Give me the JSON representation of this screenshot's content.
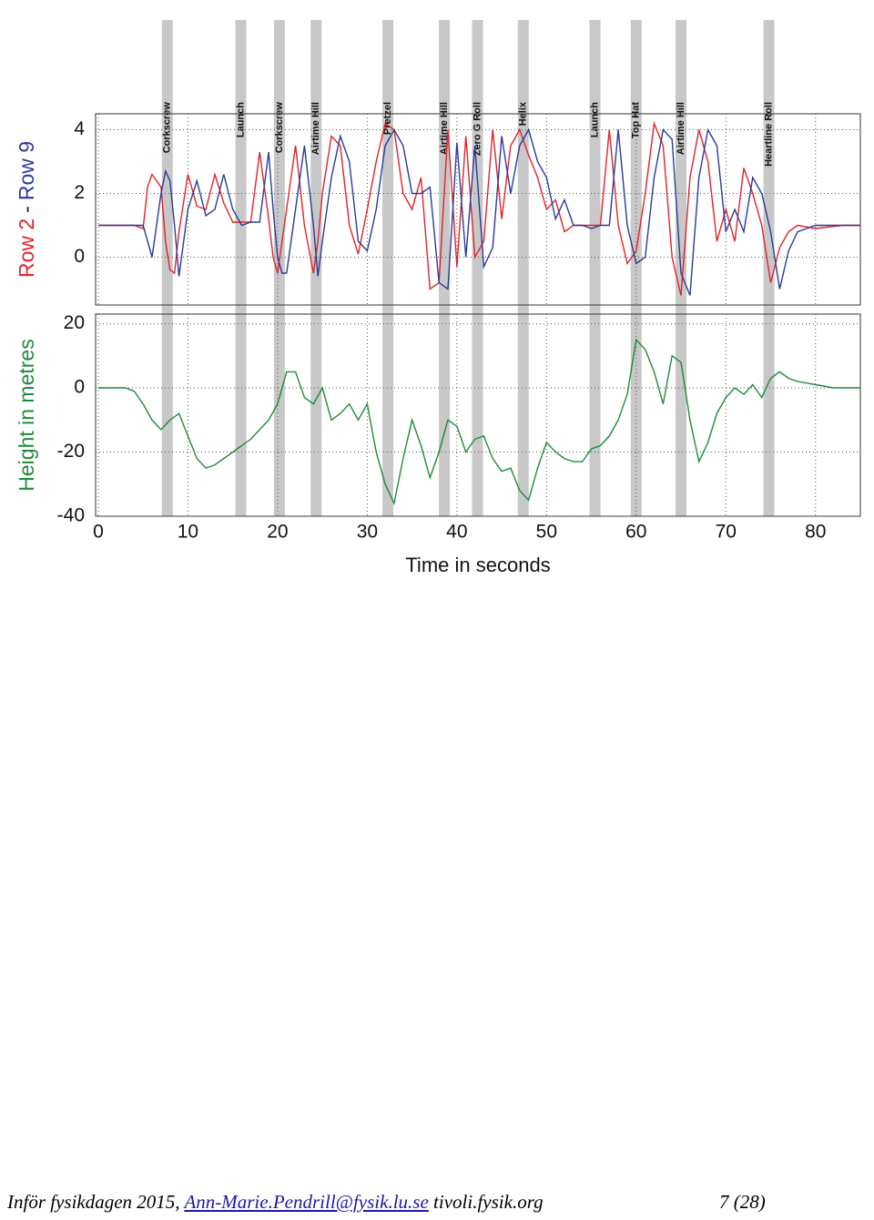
{
  "chart_data": [
    {
      "type": "line",
      "x": [
        0,
        1,
        2,
        3,
        4,
        5,
        5.5,
        6,
        7,
        7.5,
        8,
        8.5,
        9,
        10,
        11,
        12,
        13,
        14,
        15,
        16,
        17,
        18,
        19,
        19.5,
        20,
        20.5,
        21,
        22,
        23,
        24,
        24.5,
        25,
        26,
        27,
        28,
        29,
        30,
        31,
        32,
        33,
        34,
        35,
        36,
        37,
        38,
        39,
        40,
        41,
        42,
        43,
        44,
        45,
        46,
        47,
        48,
        49,
        50,
        51,
        52,
        53,
        54,
        55,
        56,
        57,
        58,
        59,
        60,
        61,
        62,
        63,
        64,
        65,
        66,
        67,
        68,
        69,
        70,
        71,
        72,
        73,
        74,
        75,
        76,
        77,
        78,
        80,
        83,
        85
      ],
      "series": [
        {
          "name": "Row 2",
          "color": "#e0242a",
          "values": [
            1,
            1,
            1,
            1,
            1,
            0.9,
            2.2,
            2.6,
            2.2,
            0.5,
            -0.4,
            -0.5,
            0.8,
            2.6,
            1.6,
            1.5,
            2.6,
            1.7,
            1.1,
            1.1,
            1.1,
            3.3,
            1.2,
            0,
            -0.5,
            0.5,
            1.5,
            3.5,
            1.0,
            -0.5,
            0.5,
            2.0,
            3.8,
            3.5,
            1.0,
            0.1,
            1.5,
            3.0,
            4.2,
            4.0,
            2.0,
            1.5,
            2.5,
            -1.0,
            -0.8,
            4.0,
            -0.3,
            3.8,
            0,
            0.5,
            4.0,
            1.2,
            3.5,
            4.0,
            3.2,
            2.5,
            1.5,
            1.8,
            0.8,
            1.0,
            1.0,
            1.0,
            1.0,
            4.0,
            1.0,
            -0.2,
            0.2,
            2.0,
            4.2,
            3.5,
            0.0,
            -1.2,
            2.5,
            4.0,
            3.0,
            0.5,
            1.5,
            0.5,
            2.8,
            2.0,
            1.0,
            -0.8,
            0.3,
            0.8,
            1.0,
            0.9,
            1.0,
            1.0
          ]
        },
        {
          "name": "Row 9",
          "color": "#2b3a9a",
          "values": [
            1,
            1,
            1,
            1,
            1,
            1,
            0.5,
            0.0,
            2.0,
            2.7,
            2.4,
            1.0,
            -0.6,
            1.5,
            2.4,
            1.3,
            1.5,
            2.6,
            1.5,
            1.0,
            1.1,
            1.1,
            3.3,
            1.5,
            0,
            -0.5,
            -0.5,
            1.5,
            3.5,
            1.0,
            -0.6,
            0.5,
            2.5,
            3.8,
            3.0,
            0.5,
            0.2,
            1.5,
            3.5,
            4.0,
            3.5,
            2.0,
            2.0,
            2.2,
            -0.8,
            -1.0,
            3.6,
            0.0,
            3.5,
            -0.3,
            0.3,
            3.8,
            2.0,
            3.5,
            4.0,
            3.0,
            2.5,
            1.2,
            1.8,
            1.0,
            1.0,
            0.9,
            1.0,
            1.0,
            4.0,
            1.0,
            -0.2,
            0,
            2.5,
            4.0,
            3.7,
            -0.5,
            -1.2,
            2.5,
            4.0,
            3.5,
            0.8,
            1.5,
            0.8,
            2.5,
            2.0,
            0.8,
            -1.0,
            0.2,
            0.8,
            1.0,
            1.0,
            1.0
          ]
        }
      ],
      "ylabel_separator": "-",
      "xlim": [
        -0.3,
        85
      ],
      "ylim": [
        -1.5,
        4.5
      ],
      "yticks": [
        0,
        2,
        4
      ],
      "xticks": [
        0,
        10,
        20,
        30,
        40,
        50,
        60,
        70,
        80
      ],
      "grid": true,
      "annotations": [
        {
          "label": "Corkscrew",
          "x": 7.7
        },
        {
          "label": "Launch",
          "x": 15.9
        },
        {
          "label": "Corkscrew",
          "x": 20.2
        },
        {
          "label": "Airtime Hill",
          "x": 24.3
        },
        {
          "label": "Pretzel",
          "x": 32.3
        },
        {
          "label": "Airtime Hill",
          "x": 38.6
        },
        {
          "label": "Zero G Roll",
          "x": 42.3
        },
        {
          "label": "Helix",
          "x": 47.4
        },
        {
          "label": "Launch",
          "x": 55.4
        },
        {
          "label": "Top Hat",
          "x": 60.0
        },
        {
          "label": "Airtime Hill",
          "x": 65.0
        },
        {
          "label": "Heartline Roll",
          "x": 74.8
        }
      ]
    },
    {
      "type": "line",
      "x": [
        0,
        3,
        4,
        5,
        6,
        7,
        8,
        9,
        10,
        11,
        12,
        13,
        15,
        17,
        19,
        20,
        21,
        22,
        23,
        24,
        25,
        26,
        27,
        28,
        29,
        30,
        31,
        32,
        33,
        34,
        35,
        36,
        37,
        38,
        39,
        40,
        41,
        42,
        43,
        44,
        45,
        46,
        47,
        48,
        49,
        50,
        51,
        52,
        53,
        54,
        55,
        56,
        57,
        58,
        59,
        60,
        61,
        62,
        63,
        64,
        65,
        66,
        67,
        68,
        69,
        70,
        71,
        72,
        73,
        74,
        75,
        76,
        77,
        78,
        80,
        82,
        85
      ],
      "series": [
        {
          "color": "#1f8a3c",
          "values": [
            0,
            0,
            -1,
            -5,
            -10,
            -13,
            -10,
            -8,
            -15,
            -22,
            -25,
            -24,
            -20,
            -16,
            -10,
            -5,
            5,
            5,
            -3,
            -5,
            0,
            -10,
            -8,
            -5,
            -10,
            -5,
            -20,
            -30,
            -36,
            -22,
            -10,
            -18,
            -28,
            -20,
            -10,
            -12,
            -20,
            -16,
            -15,
            -22,
            -26,
            -25,
            -32,
            -35,
            -25,
            -17,
            -20,
            -22,
            -23,
            -23,
            -19,
            -18,
            -15,
            -10,
            -2,
            15,
            12,
            5,
            -5,
            10,
            8,
            -10,
            -23,
            -17,
            -8,
            -3,
            0,
            -2,
            1,
            -3,
            3,
            5,
            3,
            2,
            1,
            0,
            0
          ]
        }
      ],
      "ylabel": "Height in metres",
      "xlabel": "Time in seconds",
      "xlim": [
        -0.3,
        85
      ],
      "ylim": [
        -40,
        23
      ],
      "yticks": [
        -40,
        -20,
        0,
        20
      ],
      "xticks": [
        0,
        10,
        20,
        30,
        40,
        50,
        60,
        70,
        80
      ],
      "grid": true
    }
  ],
  "footer": {
    "text": "Inför fysikdagen 2015,",
    "email": "Ann-Marie.Pendrill@fysik.lu.se",
    "site": "tivoli.fysik.org",
    "page": "7 (28)"
  }
}
